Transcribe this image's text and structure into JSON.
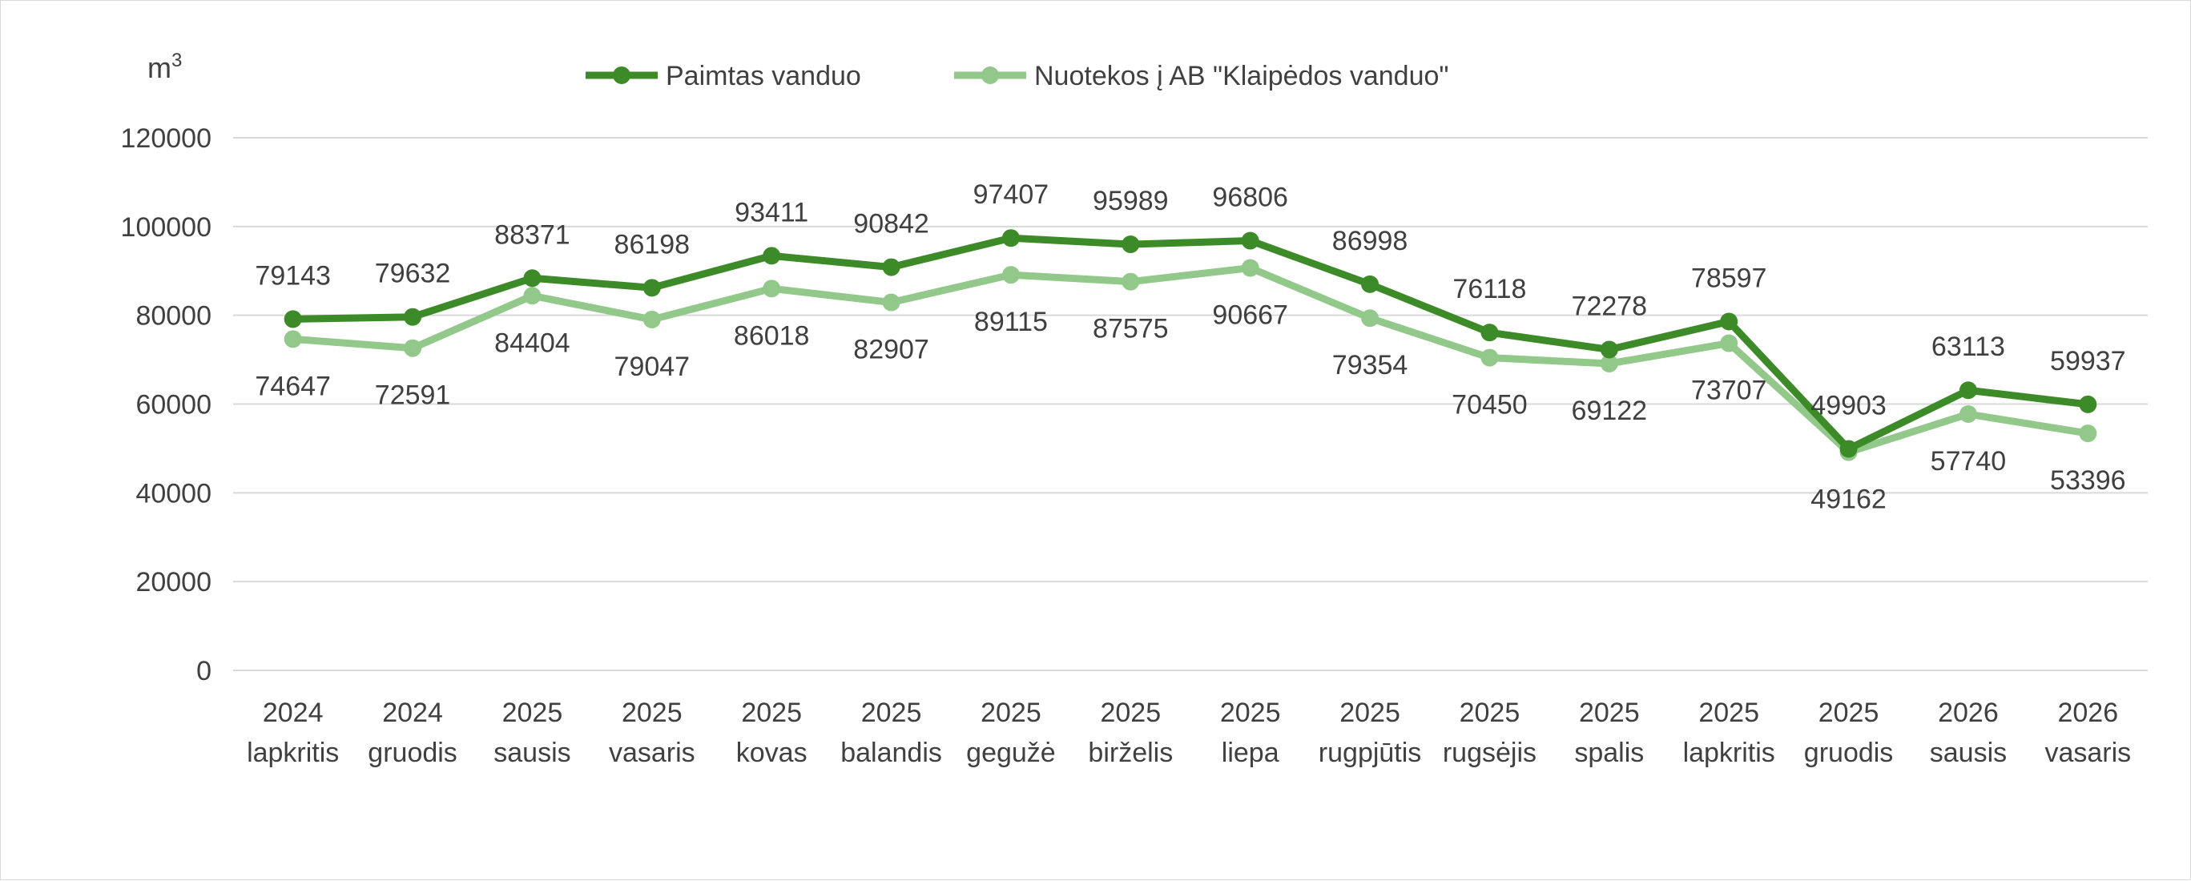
{
  "chart_data": {
    "type": "line",
    "unit_label": "m",
    "unit_superscript": "3",
    "categories": [
      [
        "2024",
        "lapkritis"
      ],
      [
        "2024",
        "gruodis"
      ],
      [
        "2025",
        "sausis"
      ],
      [
        "2025",
        "vasaris"
      ],
      [
        "2025",
        "kovas"
      ],
      [
        "2025",
        "balandis"
      ],
      [
        "2025",
        "gegužė"
      ],
      [
        "2025",
        "birželis"
      ],
      [
        "2025",
        "liepa"
      ],
      [
        "2025",
        "rugpjūtis"
      ],
      [
        "2025",
        "rugsėjis"
      ],
      [
        "2025",
        "spalis"
      ],
      [
        "2025",
        "lapkritis"
      ],
      [
        "2025",
        "gruodis"
      ],
      [
        "2026",
        "sausis"
      ],
      [
        "2026",
        "vasaris"
      ]
    ],
    "series": [
      {
        "name": "Paimtas vanduo",
        "color": "#3d8b28",
        "values": [
          79143,
          79632,
          88371,
          86198,
          93411,
          90842,
          97407,
          95989,
          96806,
          86998,
          76118,
          72278,
          78597,
          49903,
          63113,
          59937
        ]
      },
      {
        "name": "Nuotekos į AB \"Klaipėdos vanduo\"",
        "color": "#92c98a",
        "values": [
          74647,
          72591,
          84404,
          79047,
          86018,
          82907,
          89115,
          87575,
          90667,
          79354,
          70450,
          69122,
          73707,
          49162,
          57740,
          53396
        ]
      }
    ],
    "yticks": [
      0,
      20000,
      40000,
      60000,
      80000,
      100000,
      120000
    ],
    "ylim": [
      0,
      120000
    ],
    "grid": true,
    "legend_position": "top-center",
    "gridline_color": "#d9d9d9"
  }
}
